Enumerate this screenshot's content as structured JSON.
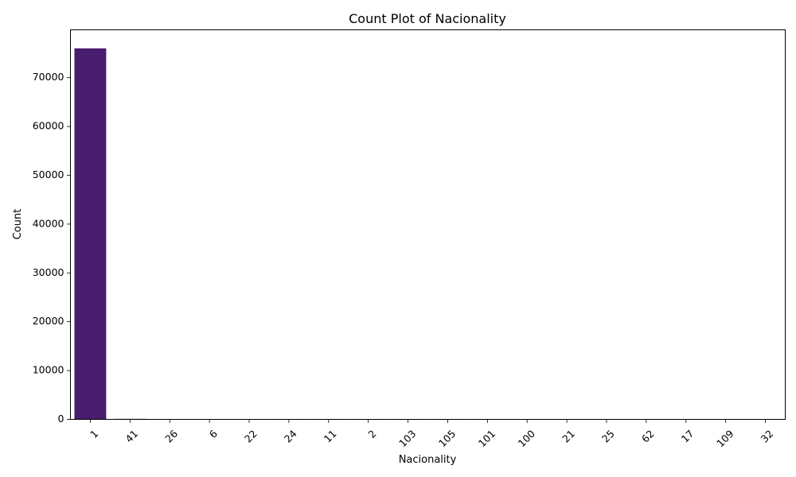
{
  "chart_data": {
    "type": "bar",
    "title": "Count Plot of Nacionality",
    "xlabel": "Nacionality",
    "ylabel": "Count",
    "categories": [
      "1",
      "41",
      "26",
      "6",
      "22",
      "24",
      "11",
      "2",
      "103",
      "105",
      "101",
      "100",
      "21",
      "25",
      "62",
      "17",
      "109",
      "32"
    ],
    "values": [
      76000,
      110,
      40,
      20,
      15,
      14,
      12,
      10,
      8,
      6,
      5,
      4,
      3,
      3,
      2,
      2,
      1,
      1
    ],
    "ylim": [
      0,
      79800
    ],
    "yticks": [
      0,
      10000,
      20000,
      30000,
      40000,
      50000,
      60000,
      70000
    ],
    "colors": [
      "#481c6e",
      "#472a7a",
      "#433a84",
      "#3e4989",
      "#38578c",
      "#32648e",
      "#2d708e",
      "#287d8e",
      "#24878e",
      "#21918c",
      "#1f9e89",
      "#25ab82",
      "#35b779",
      "#4ec36b",
      "#6ece58",
      "#90d743",
      "#b5de2b",
      "#d8e219"
    ],
    "grid": false,
    "legend": "none"
  }
}
